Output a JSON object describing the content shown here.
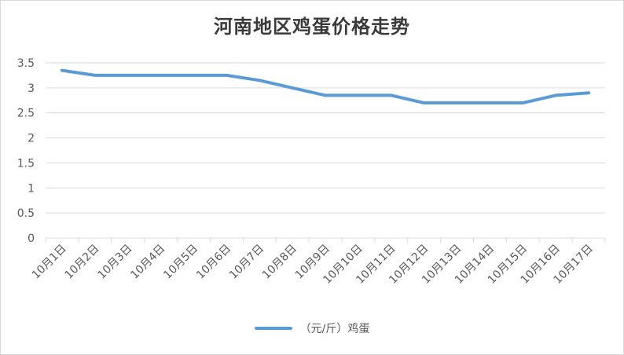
{
  "chart_data": {
    "type": "line",
    "title": "河南地区鸡蛋价格走势",
    "categories": [
      "10月1日",
      "10月2日",
      "10月3日",
      "10月4日",
      "10月5日",
      "10月6日",
      "10月7日",
      "10月8日",
      "10月9日",
      "10月10日",
      "10月11日",
      "10月12日",
      "10月13日",
      "10月14日",
      "10月15日",
      "10月16日",
      "10月17日"
    ],
    "series": [
      {
        "name": "（元/斤）鸡蛋",
        "values": [
          3.35,
          3.25,
          3.25,
          3.25,
          3.25,
          3.25,
          3.15,
          3.0,
          2.85,
          2.85,
          2.85,
          2.7,
          2.7,
          2.7,
          2.7,
          2.85,
          2.9
        ]
      }
    ],
    "ylim": [
      0,
      3.5
    ],
    "yticks": [
      "0",
      "0.5",
      "1",
      "1.5",
      "2",
      "2.5",
      "3",
      "3.5"
    ],
    "grid": true,
    "legend": "bottom",
    "colors": {
      "line": "#5b9bd5",
      "grid": "#d9d9d9"
    }
  }
}
